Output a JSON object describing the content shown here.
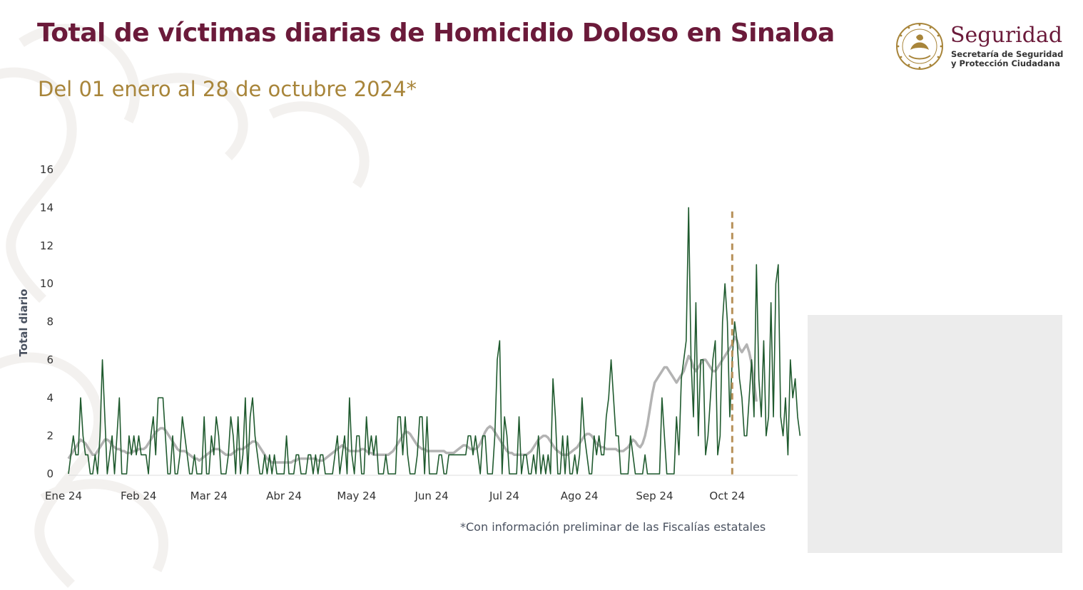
{
  "header": {
    "title": "Total de víctimas diarias de Homicidio Doloso en Sinaloa",
    "subtitle": "Del 01 enero al 28 de octubre 2024*"
  },
  "logo": {
    "name": "Seguridad",
    "line1": "Secretaría de Seguridad",
    "line2": "y Protección Ciudadana"
  },
  "footnote": "*Con información preliminar de las Fiscalías estatales",
  "colors": {
    "title": "#6b1a3a",
    "subtitle": "#a8853a",
    "daily_series": "#1f5a2e",
    "moving_average": "#b3b3b3",
    "reference_line": "#b8915a"
  },
  "chart_data": {
    "type": "line",
    "ylabel": "Total diario",
    "xlabel": "",
    "ylim": [
      0,
      16
    ],
    "yticks": [
      0,
      2,
      4,
      6,
      8,
      10,
      12,
      14,
      16
    ],
    "xlim": [
      "2024-01-01",
      "2024-10-28"
    ],
    "month_ticks": [
      {
        "date": "2024-01-01",
        "label": "Ene 24"
      },
      {
        "date": "2024-02-01",
        "label": "Feb 24"
      },
      {
        "date": "2024-03-01",
        "label": "Mar 24"
      },
      {
        "date": "2024-04-01",
        "label": "Abr 24"
      },
      {
        "date": "2024-05-01",
        "label": "May 24"
      },
      {
        "date": "2024-06-01",
        "label": "Jun 24"
      },
      {
        "date": "2024-07-01",
        "label": "Jul 24"
      },
      {
        "date": "2024-08-01",
        "label": "Ago 24"
      },
      {
        "date": "2024-09-01",
        "label": "Sep 24"
      },
      {
        "date": "2024-10-01",
        "label": "Oct 24"
      }
    ],
    "reference_line": {
      "date": "2024-10-01"
    },
    "grid": false,
    "series": [
      {
        "key": "daily",
        "values": [
          0,
          1,
          2,
          1,
          1,
          4,
          2,
          1,
          1,
          0,
          0,
          1,
          0,
          2,
          6,
          3,
          0,
          1,
          2,
          0,
          2,
          4,
          0,
          0,
          0,
          2,
          1,
          2,
          1,
          2,
          1,
          1,
          1,
          0,
          2,
          3,
          1,
          4,
          4,
          4,
          2,
          0,
          0,
          2,
          0,
          0,
          1,
          3,
          2,
          1,
          0,
          0,
          1,
          0,
          0,
          0,
          3,
          0,
          0,
          2,
          1,
          3,
          2,
          0,
          0,
          0,
          1,
          3,
          2,
          0,
          3,
          0,
          1,
          4,
          0,
          3,
          4,
          2,
          1,
          0,
          0,
          1,
          0,
          1,
          0,
          1,
          0,
          0,
          0,
          0,
          2,
          0,
          0,
          0,
          1,
          1,
          0,
          0,
          0,
          1,
          1,
          0,
          1,
          0,
          1,
          1,
          0,
          0,
          0,
          0,
          1,
          2,
          0,
          1,
          2,
          0,
          4,
          1,
          0,
          2,
          2,
          0,
          0,
          3,
          1,
          2,
          1,
          2,
          0,
          0,
          0,
          1,
          0,
          0,
          0,
          0,
          3,
          3,
          1,
          3,
          1,
          0,
          0,
          0,
          1,
          3,
          3,
          0,
          3,
          0,
          0,
          0,
          0,
          1,
          1,
          0,
          0,
          1,
          1,
          1,
          1,
          1,
          1,
          1,
          1,
          2,
          2,
          1,
          2,
          1,
          0,
          2,
          2,
          0,
          0,
          0,
          2,
          6,
          7,
          0,
          3,
          2,
          0,
          0,
          0,
          0,
          3,
          0,
          1,
          1,
          0,
          0,
          1,
          0,
          2,
          0,
          1,
          0,
          1,
          0,
          5,
          3,
          0,
          0,
          2,
          0,
          2,
          0,
          0,
          1,
          0,
          1,
          4,
          2,
          1,
          0,
          0,
          2,
          1,
          2,
          1,
          1,
          3,
          4,
          6,
          4,
          2,
          2,
          0,
          0,
          0,
          0,
          2,
          1,
          0,
          0,
          0,
          0,
          1,
          0,
          0,
          0,
          0,
          0,
          0,
          4,
          2,
          0,
          0,
          0,
          0,
          3,
          1,
          5,
          6,
          7,
          14,
          6,
          3,
          9,
          2,
          6,
          6,
          1,
          2,
          4,
          6,
          7,
          1,
          2,
          8,
          10,
          8,
          3,
          6,
          8,
          7,
          5,
          4,
          2,
          2,
          4,
          6,
          3,
          11,
          5,
          3,
          7,
          2,
          3,
          9,
          3,
          10,
          11,
          3,
          2,
          4,
          1,
          6,
          4,
          5,
          3,
          2
        ]
      },
      {
        "key": "moving_average",
        "values": [
          0.8,
          1.0,
          1.2,
          1.4,
          1.6,
          1.8,
          1.7,
          1.6,
          1.4,
          1.2,
          1.0,
          1.0,
          1.2,
          1.4,
          1.6,
          1.8,
          1.8,
          1.7,
          1.5,
          1.4,
          1.3,
          1.3,
          1.2,
          1.2,
          1.1,
          1.1,
          1.1,
          1.2,
          1.2,
          1.3,
          1.3,
          1.3,
          1.4,
          1.6,
          1.8,
          2.0,
          2.2,
          2.3,
          2.4,
          2.4,
          2.3,
          2.1,
          1.9,
          1.7,
          1.5,
          1.3,
          1.2,
          1.2,
          1.2,
          1.1,
          1.0,
          0.9,
          0.8,
          0.8,
          0.7,
          0.8,
          0.9,
          1.0,
          1.1,
          1.2,
          1.3,
          1.3,
          1.3,
          1.2,
          1.1,
          1.0,
          1.0,
          1.0,
          1.1,
          1.2,
          1.3,
          1.3,
          1.3,
          1.4,
          1.5,
          1.6,
          1.7,
          1.7,
          1.6,
          1.4,
          1.2,
          1.0,
          0.8,
          0.7,
          0.6,
          0.6,
          0.6,
          0.6,
          0.6,
          0.6,
          0.6,
          0.6,
          0.6,
          0.7,
          0.7,
          0.8,
          0.8,
          0.8,
          0.8,
          0.8,
          0.8,
          0.8,
          0.8,
          0.7,
          0.7,
          0.7,
          0.8,
          0.9,
          1.0,
          1.1,
          1.2,
          1.3,
          1.4,
          1.5,
          1.4,
          1.3,
          1.2,
          1.2,
          1.2,
          1.2,
          1.2,
          1.3,
          1.3,
          1.2,
          1.1,
          1.1,
          1.0,
          1.0,
          1.0,
          1.0,
          1.0,
          1.0,
          1.0,
          1.1,
          1.2,
          1.4,
          1.6,
          1.8,
          2.0,
          2.2,
          2.2,
          2.1,
          1.9,
          1.7,
          1.5,
          1.4,
          1.3,
          1.3,
          1.2,
          1.2,
          1.2,
          1.2,
          1.2,
          1.2,
          1.2,
          1.2,
          1.1,
          1.1,
          1.1,
          1.1,
          1.2,
          1.3,
          1.4,
          1.5,
          1.5,
          1.4,
          1.3,
          1.3,
          1.3,
          1.4,
          1.6,
          1.9,
          2.2,
          2.4,
          2.5,
          2.4,
          2.2,
          2.0,
          1.8,
          1.6,
          1.4,
          1.2,
          1.1,
          1.1,
          1.0,
          1.0,
          1.0,
          1.0,
          1.0,
          1.0,
          1.1,
          1.2,
          1.4,
          1.6,
          1.8,
          1.9,
          2.0,
          2.0,
          1.9,
          1.7,
          1.5,
          1.3,
          1.2,
          1.1,
          1.0,
          1.0,
          1.0,
          1.1,
          1.2,
          1.3,
          1.4,
          1.6,
          1.8,
          2.0,
          2.1,
          2.1,
          2.0,
          1.8,
          1.6,
          1.5,
          1.4,
          1.4,
          1.3,
          1.3,
          1.3,
          1.3,
          1.3,
          1.2,
          1.2,
          1.2,
          1.3,
          1.4,
          1.6,
          1.8,
          1.7,
          1.5,
          1.4,
          1.6,
          2.0,
          2.6,
          3.4,
          4.2,
          4.8,
          5.0,
          5.2,
          5.4,
          5.6,
          5.6,
          5.4,
          5.2,
          5.0,
          4.8,
          5.0,
          5.2,
          5.4,
          5.8,
          6.2,
          6.0,
          5.6,
          5.4,
          5.6,
          5.8,
          6.0,
          6.0,
          5.8,
          5.6,
          5.4,
          5.4,
          5.6,
          5.8,
          6.0,
          6.2,
          6.4,
          6.6,
          6.8,
          7.2,
          7.0,
          6.6,
          6.4,
          6.6,
          6.8,
          6.4,
          5.8,
          4.8,
          3.8
        ]
      }
    ]
  }
}
